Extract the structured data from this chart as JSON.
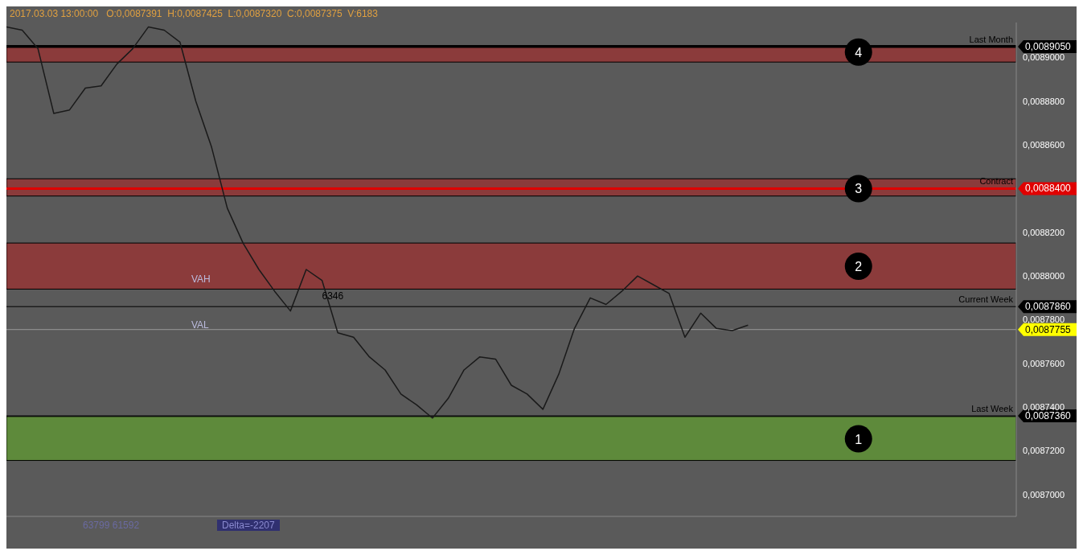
{
  "chart_data": {
    "type": "line",
    "title": "2017.03.03 13:00:00",
    "subtitle": "O:0,0087391  H:0,0087425  L:0,0087320  C:0,0087375  V:6183",
    "categories": [
      null,
      null,
      null,
      null,
      null,
      null,
      null,
      null,
      null,
      null,
      null,
      null,
      null,
      null,
      null,
      null,
      null,
      null,
      null,
      null,
      null,
      null,
      null,
      null,
      null,
      null,
      null,
      null,
      null,
      null,
      null,
      null,
      null,
      null,
      null,
      null,
      null,
      null,
      null,
      null,
      null,
      null,
      null,
      null,
      null,
      null,
      null,
      null,
      null,
      null,
      null,
      null,
      null,
      null,
      null,
      null,
      null,
      null,
      null,
      null,
      null,
      null,
      null,
      null,
      null
    ],
    "series": [
      {
        "color": "#1a1a1a",
        "values": [
          0.008914,
          0.0089125,
          0.008904,
          0.0088744,
          0.008876,
          0.008886,
          0.008887,
          0.008897,
          0.008904,
          0.008914,
          0.0089125,
          0.008907,
          0.00888,
          0.008859,
          0.008831,
          0.008815,
          0.008803,
          0.008793,
          0.008784,
          0.008803,
          0.008798,
          0.008774,
          0.008772,
          0.008763,
          0.008757,
          0.008746,
          0.008741,
          0.008735,
          0.008744,
          0.008757,
          0.008763,
          0.008762,
          0.00875,
          0.008746,
          0.008739,
          0.008755,
          0.008776,
          0.00879,
          0.008787,
          0.008793,
          0.0088,
          0.008796,
          0.008792,
          0.008772,
          0.008783,
          0.008776,
          0.008775,
          0.0087775,
          null,
          null,
          null,
          null,
          null,
          null,
          null,
          null,
          null,
          null,
          null,
          null,
          null,
          null,
          null,
          null,
          null
        ]
      }
    ],
    "ylim": [
      0.00869,
      0.008916
    ],
    "yticks": [
      {
        "value": 0.0087,
        "label": "0,0087000"
      },
      {
        "value": 0.00872,
        "label": "0,0087200"
      },
      {
        "value": 0.00874,
        "label": "0,0087400"
      },
      {
        "value": 0.00876,
        "label": "0,0087600"
      },
      {
        "value": 0.00878,
        "label": "0,0087800"
      },
      {
        "value": 0.0088,
        "label": "0,0088000"
      },
      {
        "value": 0.00882,
        "label": "0,0088200"
      },
      {
        "value": 0.00886,
        "label": "0,0088600"
      },
      {
        "value": 0.00888,
        "label": "0,0088800"
      },
      {
        "value": 0.0089,
        "label": "0,0089000"
      }
    ],
    "bands": [
      {
        "axis": "y",
        "from": 0.0088979,
        "to": 0.0089055,
        "color": "#8b3b3b"
      },
      {
        "axis": "y",
        "from": 0.0088366,
        "to": 0.0088445,
        "color": "#8b3b3b"
      },
      {
        "axis": "y",
        "from": 0.008794,
        "to": 0.0088151,
        "color": "#8b3b3b"
      },
      {
        "axis": "y",
        "from": 0.0087156,
        "to": 0.0087357,
        "color": "#5e8a3b"
      }
    ],
    "ref_lines": [
      {
        "axis": "y",
        "value": 0.008905,
        "label": "Last Month",
        "color": "#000000"
      },
      {
        "axis": "y",
        "value": 0.00884,
        "label": "Contract",
        "color": "#e00000"
      },
      {
        "axis": "y",
        "value": 0.008786,
        "label": "Current Week",
        "color": "#000000"
      },
      {
        "axis": "y",
        "value": 0.008736,
        "label": "Last Week",
        "color": "#000000"
      },
      {
        "axis": "y",
        "value": 0.0087755,
        "color": "#9a9a9a"
      }
    ],
    "annotations": [
      "0,0089050",
      "0,0088400",
      "0,0087860",
      "0,0087360",
      "0,0087755",
      {
        "text": "4",
        "y": 0.0089025
      },
      {
        "text": "3",
        "y": 0.00884
      },
      {
        "text": "2",
        "y": 0.0088045
      },
      {
        "text": "1",
        "y": 0.0087255
      },
      "VAH",
      "VAL",
      {
        "text": "6346",
        "y": 0.008787
      },
      "63799 61592",
      "Delta=-2207"
    ],
    "grid": false,
    "legend": false,
    "marker": "none",
    "line_style": "solid"
  }
}
